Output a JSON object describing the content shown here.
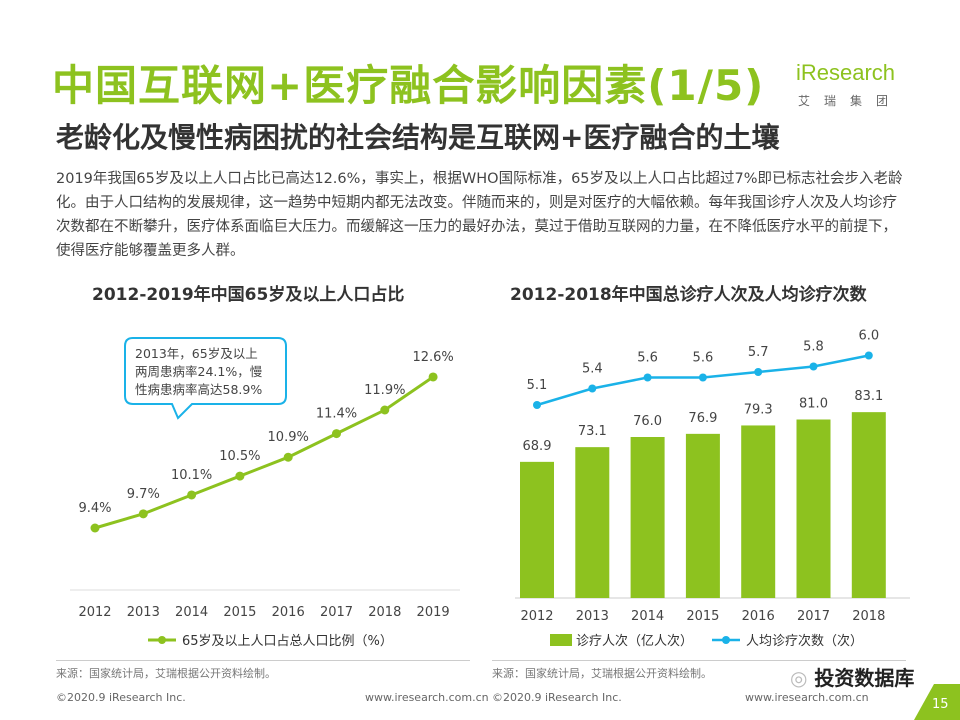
{
  "header": {
    "title": "中国互联网+医疗融合影响因素(1/5)",
    "subtitle": "老龄化及慢性病困扰的社会结构是互联网+医疗融合的土壤",
    "logo": {
      "brand": "iResearch",
      "cn": "艾瑞集团"
    }
  },
  "paragraph": "2019年我国65岁及以上人口占比已高达12.6%，事实上，根据WHO国际标准，65岁及以上人口占比超过7%即已标志社会步入老龄化。由于人口结构的发展规律，这一趋势中短期内都无法改变。伴随而来的，则是对医疗的大幅依赖。每年我国诊疗人次及人均诊疗次数都在不断攀升，医疗体系面临巨大压力。而缓解这一压力的最好办法，莫过于借助互联网的力量，在不降低医疗水平的前提下，使得医疗能够覆盖更多人群。",
  "colors": {
    "green": "#8dc21f",
    "blue": "#1ab2e8"
  },
  "chart_data": [
    {
      "type": "line",
      "title": "2012-2019年中国65岁及以上人口占比",
      "x": [
        "2012",
        "2013",
        "2014",
        "2015",
        "2016",
        "2017",
        "2018",
        "2019"
      ],
      "series": [
        {
          "name": "65岁及以上人口占总人口比例（%）",
          "values": [
            9.4,
            9.7,
            10.1,
            10.5,
            10.9,
            11.4,
            11.9,
            12.6
          ],
          "labels": [
            "9.4%",
            "9.7%",
            "10.1%",
            "10.5%",
            "10.9%",
            "11.4%",
            "11.9%",
            "12.6%"
          ]
        }
      ],
      "annotation": [
        "2013年，65岁及以上",
        "两周患病率24.1%，慢",
        "性病患病率高达58.9%"
      ],
      "source": "来源：国家统计局，艾瑞根据公开资料绘制。",
      "footer_left": "©2020.9 iResearch Inc.",
      "footer_right": "www.iresearch.com.cn"
    },
    {
      "type": "bar",
      "title": "2012-2018年中国总诊疗人次及人均诊疗次数",
      "categories": [
        "2012",
        "2013",
        "2014",
        "2015",
        "2016",
        "2017",
        "2018"
      ],
      "series": [
        {
          "name": "诊疗人次（亿人次）",
          "type": "bar",
          "values": [
            68.9,
            73.1,
            76.0,
            76.9,
            79.3,
            81.0,
            83.1
          ],
          "labels": [
            "68.9",
            "73.1",
            "76.0",
            "76.9",
            "79.3",
            "81.0",
            "83.1"
          ]
        },
        {
          "name": "人均诊疗次数（次）",
          "type": "line",
          "values": [
            5.1,
            5.4,
            5.6,
            5.6,
            5.7,
            5.8,
            6.0
          ],
          "labels": [
            "5.1",
            "5.4",
            "5.6",
            "5.6",
            "5.7",
            "5.8",
            "6.0"
          ]
        }
      ],
      "source": "来源：国家统计局，艾瑞根据公开资料绘制。",
      "footer_left": "©2020.9 iResearch Inc.",
      "footer_right": "www.iresearch.com.cn"
    }
  ],
  "watermark": "投资数据库",
  "page_number": "15"
}
